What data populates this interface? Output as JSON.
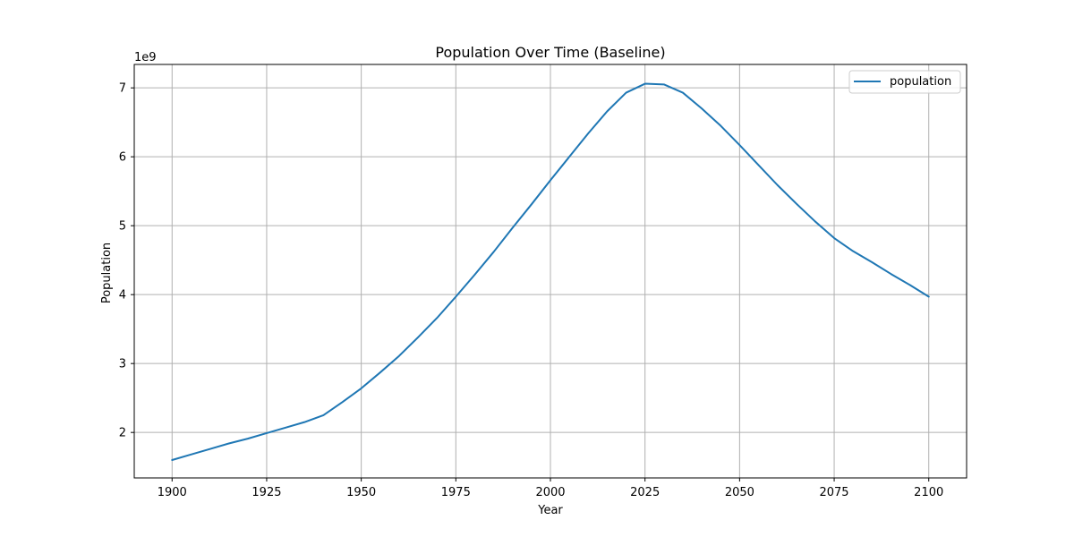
{
  "chart_data": {
    "type": "line",
    "title": "Population Over Time (Baseline)",
    "xlabel": "Year",
    "ylabel": "Population",
    "y_offset_text": "1e9",
    "y_scale_factor": 1000000000,
    "xlim": [
      1890,
      2110
    ],
    "ylim": [
      1340000000,
      7340000000
    ],
    "x_ticks": [
      1900,
      1925,
      1950,
      1975,
      2000,
      2025,
      2050,
      2075,
      2100
    ],
    "y_ticks": [
      2,
      3,
      4,
      5,
      6,
      7
    ],
    "grid": true,
    "legend_position": "top-right",
    "series": [
      {
        "name": "population",
        "color": "#1f77b4",
        "x": [
          1900,
          1905,
          1910,
          1915,
          1920,
          1925,
          1930,
          1935,
          1940,
          1945,
          1950,
          1955,
          1960,
          1965,
          1970,
          1975,
          1980,
          1985,
          1990,
          1995,
          2000,
          2005,
          2010,
          2015,
          2020,
          2025,
          2030,
          2035,
          2040,
          2045,
          2050,
          2055,
          2060,
          2065,
          2070,
          2075,
          2080,
          2085,
          2090,
          2095,
          2100
        ],
        "values": [
          1600000000,
          1680000000,
          1760000000,
          1840000000,
          1910000000,
          1990000000,
          2070000000,
          2150000000,
          2250000000,
          2440000000,
          2640000000,
          2870000000,
          3110000000,
          3380000000,
          3660000000,
          3970000000,
          4290000000,
          4620000000,
          4970000000,
          5310000000,
          5660000000,
          6000000000,
          6340000000,
          6660000000,
          6930000000,
          7060000000,
          7050000000,
          6930000000,
          6700000000,
          6450000000,
          6170000000,
          5880000000,
          5590000000,
          5320000000,
          5060000000,
          4820000000,
          4630000000,
          4470000000,
          4300000000,
          4140000000,
          3970000000
        ]
      }
    ]
  }
}
